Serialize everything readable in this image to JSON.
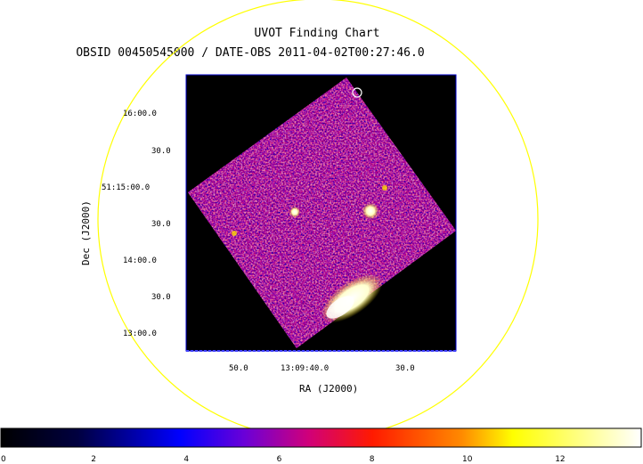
{
  "figure": {
    "title": "UVOT Finding Chart",
    "subtitle": "OBSID 00450545000 / DATE-OBS 2011-04-02T00:27:46.0",
    "xlabel": "RA (J2000)",
    "ylabel": "Dec (J2000)",
    "ra_ticks": [
      "50.0",
      "13:09:40.0",
      "30.0"
    ],
    "dec_ticks": [
      "16:00.0",
      "30.0",
      "51:15:00.0",
      "30.0",
      "14:00.0",
      "30.0",
      "13:00.0"
    ],
    "colorbar": {
      "ticks": [
        "0",
        "2",
        "4",
        "6",
        "8",
        "10",
        "12"
      ],
      "range": [
        0,
        13.8
      ],
      "stops": [
        "#000000",
        "#0000ff",
        "#8a00c8",
        "#ff0000",
        "#ffff00",
        "#ffffff"
      ]
    },
    "colors": {
      "circle": "#ffff00",
      "frame": "#0000cc",
      "background": "#000000"
    }
  }
}
